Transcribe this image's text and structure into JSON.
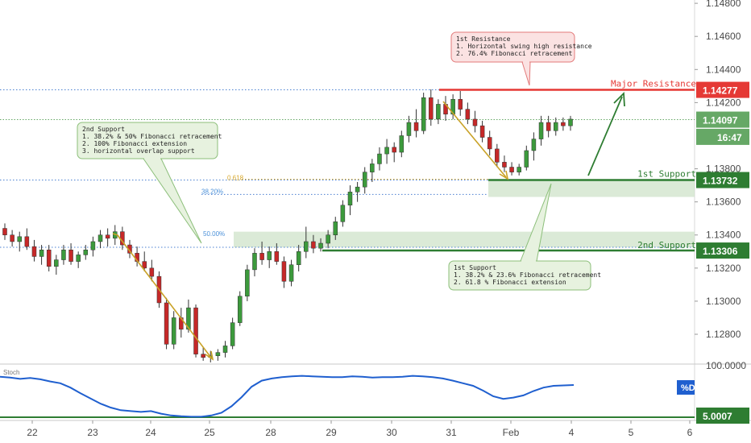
{
  "chart_data": {
    "type": "candlestick",
    "x_tick_labels": [
      "22",
      "23",
      "24",
      "25",
      "28",
      "29",
      "30",
      "31",
      "Feb",
      "4",
      "5",
      "6"
    ],
    "y_tick_labels": [
      "1.14800",
      "1.14600",
      "1.14400",
      "1.14200",
      "1.13800",
      "1.13600",
      "1.13400",
      "1.13200",
      "1.13000",
      "1.12800"
    ],
    "ylim": [
      1.1262,
      1.1482
    ],
    "price_tags": [
      {
        "label": "1.14277",
        "value": 1.14277,
        "color": "#e53935",
        "text": "Major Resistance"
      },
      {
        "label": "1.14097",
        "value": 1.14097,
        "color": "#66a866",
        "text": ""
      },
      {
        "label": "16:47",
        "value": 1.13993,
        "color": "#66a866",
        "text": ""
      },
      {
        "label": "1.13732",
        "value": 1.13732,
        "color": "#2e7d32",
        "text": "1st Support"
      },
      {
        "label": "1.13306",
        "value": 1.13306,
        "color": "#2e7d32",
        "text": "2nd Support"
      }
    ],
    "fib_labels": [
      {
        "label": "0.618",
        "value": 1.13735,
        "color": "#d8a82b"
      },
      {
        "label": "38.20%",
        "value": 1.13645,
        "color": "#4a90d9"
      },
      {
        "label": "50.00%",
        "value": 1.1344,
        "color": "#4a90d9"
      }
    ],
    "notes": {
      "resistance": [
        "1st Resistance",
        "1. Horizontal swing high resistance",
        "2. 76.4% Fibonacci retracement"
      ],
      "support1": [
        "1st Support",
        "1. 38.2% & 23.6% Fibonacci retracement",
        "2. 61.8 % Fibonacci extension"
      ],
      "support2": [
        "2nd Support",
        "1. 38.2% & 50% Fibonacci retracement",
        "2. 100% Fibonacci extension",
        "3. horizontal overlap support"
      ]
    },
    "candles": [
      {
        "o": 1.1344,
        "h": 1.1347,
        "l": 1.1337,
        "c": 1.134
      },
      {
        "o": 1.134,
        "h": 1.1343,
        "l": 1.1333,
        "c": 1.1336
      },
      {
        "o": 1.1336,
        "h": 1.1342,
        "l": 1.133,
        "c": 1.1339
      },
      {
        "o": 1.1339,
        "h": 1.1344,
        "l": 1.1331,
        "c": 1.1333
      },
      {
        "o": 1.1333,
        "h": 1.1337,
        "l": 1.1324,
        "c": 1.1327
      },
      {
        "o": 1.1327,
        "h": 1.1334,
        "l": 1.1322,
        "c": 1.1331
      },
      {
        "o": 1.1331,
        "h": 1.1334,
        "l": 1.1318,
        "c": 1.1321
      },
      {
        "o": 1.1321,
        "h": 1.1328,
        "l": 1.1316,
        "c": 1.1325
      },
      {
        "o": 1.1325,
        "h": 1.1334,
        "l": 1.1322,
        "c": 1.1331
      },
      {
        "o": 1.1331,
        "h": 1.1335,
        "l": 1.1322,
        "c": 1.1324
      },
      {
        "o": 1.1324,
        "h": 1.133,
        "l": 1.132,
        "c": 1.1328
      },
      {
        "o": 1.1328,
        "h": 1.1334,
        "l": 1.1325,
        "c": 1.1331
      },
      {
        "o": 1.1331,
        "h": 1.1339,
        "l": 1.1327,
        "c": 1.1336
      },
      {
        "o": 1.1336,
        "h": 1.1343,
        "l": 1.1332,
        "c": 1.134
      },
      {
        "o": 1.134,
        "h": 1.1344,
        "l": 1.1333,
        "c": 1.1338
      },
      {
        "o": 1.1338,
        "h": 1.1346,
        "l": 1.1334,
        "c": 1.1342
      },
      {
        "o": 1.1342,
        "h": 1.1345,
        "l": 1.1331,
        "c": 1.1334
      },
      {
        "o": 1.1334,
        "h": 1.1337,
        "l": 1.1326,
        "c": 1.1329
      },
      {
        "o": 1.1329,
        "h": 1.1333,
        "l": 1.1321,
        "c": 1.1324
      },
      {
        "o": 1.1324,
        "h": 1.133,
        "l": 1.1318,
        "c": 1.132
      },
      {
        "o": 1.132,
        "h": 1.1325,
        "l": 1.1312,
        "c": 1.1315
      },
      {
        "o": 1.1315,
        "h": 1.1318,
        "l": 1.1296,
        "c": 1.1299
      },
      {
        "o": 1.1299,
        "h": 1.1302,
        "l": 1.1271,
        "c": 1.1274
      },
      {
        "o": 1.1274,
        "h": 1.1294,
        "l": 1.1271,
        "c": 1.129
      },
      {
        "o": 1.129,
        "h": 1.1296,
        "l": 1.1278,
        "c": 1.1283
      },
      {
        "o": 1.1283,
        "h": 1.1301,
        "l": 1.1281,
        "c": 1.1296
      },
      {
        "o": 1.1296,
        "h": 1.1298,
        "l": 1.1266,
        "c": 1.1268
      },
      {
        "o": 1.1268,
        "h": 1.1272,
        "l": 1.1264,
        "c": 1.1266
      },
      {
        "o": 1.1266,
        "h": 1.127,
        "l": 1.1263,
        "c": 1.1267
      },
      {
        "o": 1.1267,
        "h": 1.1271,
        "l": 1.1264,
        "c": 1.1269
      },
      {
        "o": 1.1269,
        "h": 1.1276,
        "l": 1.1266,
        "c": 1.1273
      },
      {
        "o": 1.1273,
        "h": 1.129,
        "l": 1.1271,
        "c": 1.1287
      },
      {
        "o": 1.1287,
        "h": 1.1306,
        "l": 1.1285,
        "c": 1.1303
      },
      {
        "o": 1.1303,
        "h": 1.1322,
        "l": 1.13,
        "c": 1.1319
      },
      {
        "o": 1.1319,
        "h": 1.1332,
        "l": 1.1315,
        "c": 1.1329
      },
      {
        "o": 1.1329,
        "h": 1.1336,
        "l": 1.1322,
        "c": 1.1325
      },
      {
        "o": 1.1325,
        "h": 1.1333,
        "l": 1.132,
        "c": 1.133
      },
      {
        "o": 1.133,
        "h": 1.1335,
        "l": 1.1322,
        "c": 1.1324
      },
      {
        "o": 1.1324,
        "h": 1.1327,
        "l": 1.1308,
        "c": 1.1312
      },
      {
        "o": 1.1312,
        "h": 1.1325,
        "l": 1.1309,
        "c": 1.1322
      },
      {
        "o": 1.1322,
        "h": 1.1334,
        "l": 1.1318,
        "c": 1.133
      },
      {
        "o": 1.133,
        "h": 1.1345,
        "l": 1.1326,
        "c": 1.1336
      },
      {
        "o": 1.1336,
        "h": 1.134,
        "l": 1.1329,
        "c": 1.1332
      },
      {
        "o": 1.1332,
        "h": 1.1338,
        "l": 1.133,
        "c": 1.1335
      },
      {
        "o": 1.1335,
        "h": 1.1343,
        "l": 1.1332,
        "c": 1.134
      },
      {
        "o": 1.134,
        "h": 1.1351,
        "l": 1.1337,
        "c": 1.1348
      },
      {
        "o": 1.1348,
        "h": 1.1361,
        "l": 1.1345,
        "c": 1.1358
      },
      {
        "o": 1.1358,
        "h": 1.137,
        "l": 1.1352,
        "c": 1.1366
      },
      {
        "o": 1.1366,
        "h": 1.1372,
        "l": 1.136,
        "c": 1.1369
      },
      {
        "o": 1.1369,
        "h": 1.1381,
        "l": 1.1365,
        "c": 1.1378
      },
      {
        "o": 1.1378,
        "h": 1.1386,
        "l": 1.1372,
        "c": 1.1383
      },
      {
        "o": 1.1383,
        "h": 1.1393,
        "l": 1.1379,
        "c": 1.1389
      },
      {
        "o": 1.1389,
        "h": 1.1398,
        "l": 1.1383,
        "c": 1.1393
      },
      {
        "o": 1.1393,
        "h": 1.1396,
        "l": 1.1384,
        "c": 1.139
      },
      {
        "o": 1.139,
        "h": 1.1403,
        "l": 1.1387,
        "c": 1.14
      },
      {
        "o": 1.14,
        "h": 1.1412,
        "l": 1.1396,
        "c": 1.1408
      },
      {
        "o": 1.1408,
        "h": 1.1416,
        "l": 1.1399,
        "c": 1.1403
      },
      {
        "o": 1.1403,
        "h": 1.1426,
        "l": 1.1401,
        "c": 1.1423
      },
      {
        "o": 1.1423,
        "h": 1.1428,
        "l": 1.1406,
        "c": 1.141
      },
      {
        "o": 1.141,
        "h": 1.1422,
        "l": 1.1407,
        "c": 1.1419
      },
      {
        "o": 1.1419,
        "h": 1.1424,
        "l": 1.1409,
        "c": 1.1413
      },
      {
        "o": 1.1413,
        "h": 1.1425,
        "l": 1.141,
        "c": 1.1422
      },
      {
        "o": 1.1422,
        "h": 1.1427,
        "l": 1.1412,
        "c": 1.1416
      },
      {
        "o": 1.1416,
        "h": 1.142,
        "l": 1.1407,
        "c": 1.141
      },
      {
        "o": 1.141,
        "h": 1.1415,
        "l": 1.1402,
        "c": 1.1406
      },
      {
        "o": 1.1406,
        "h": 1.1409,
        "l": 1.1396,
        "c": 1.1399
      },
      {
        "o": 1.1399,
        "h": 1.1403,
        "l": 1.1388,
        "c": 1.1392
      },
      {
        "o": 1.1392,
        "h": 1.1395,
        "l": 1.1381,
        "c": 1.1384
      },
      {
        "o": 1.1384,
        "h": 1.1388,
        "l": 1.1378,
        "c": 1.1381
      },
      {
        "o": 1.1381,
        "h": 1.1384,
        "l": 1.1376,
        "c": 1.1378
      },
      {
        "o": 1.1378,
        "h": 1.1383,
        "l": 1.1376,
        "c": 1.1381
      },
      {
        "o": 1.1381,
        "h": 1.1394,
        "l": 1.1379,
        "c": 1.1391
      },
      {
        "o": 1.1391,
        "h": 1.1402,
        "l": 1.1385,
        "c": 1.1398
      },
      {
        "o": 1.1398,
        "h": 1.1412,
        "l": 1.1394,
        "c": 1.1408
      },
      {
        "o": 1.1408,
        "h": 1.1412,
        "l": 1.1399,
        "c": 1.1403
      },
      {
        "o": 1.1403,
        "h": 1.1411,
        "l": 1.14,
        "c": 1.1408
      },
      {
        "o": 1.1408,
        "h": 1.1411,
        "l": 1.1403,
        "c": 1.1406
      },
      {
        "o": 1.1406,
        "h": 1.1412,
        "l": 1.1403,
        "c": 1.141
      }
    ],
    "stoch": {
      "label": "%D",
      "labels": [
        "Stoch"
      ],
      "y_tick_labels": [
        "100.0000",
        "5.0007"
      ],
      "ylim": [
        0,
        100
      ],
      "values": [
        95,
        93,
        90,
        92,
        89,
        84,
        80,
        70,
        57,
        45,
        33,
        24,
        18,
        16,
        14,
        16,
        10,
        6,
        4,
        3,
        3,
        6,
        12,
        27,
        48,
        72,
        86,
        91,
        94,
        96,
        97,
        96,
        95,
        94,
        94,
        96,
        95,
        93,
        94,
        94,
        95,
        97,
        96,
        94,
        91,
        86,
        80,
        74,
        63,
        50,
        44,
        47,
        52,
        62,
        70,
        74,
        75,
        76
      ]
    }
  }
}
